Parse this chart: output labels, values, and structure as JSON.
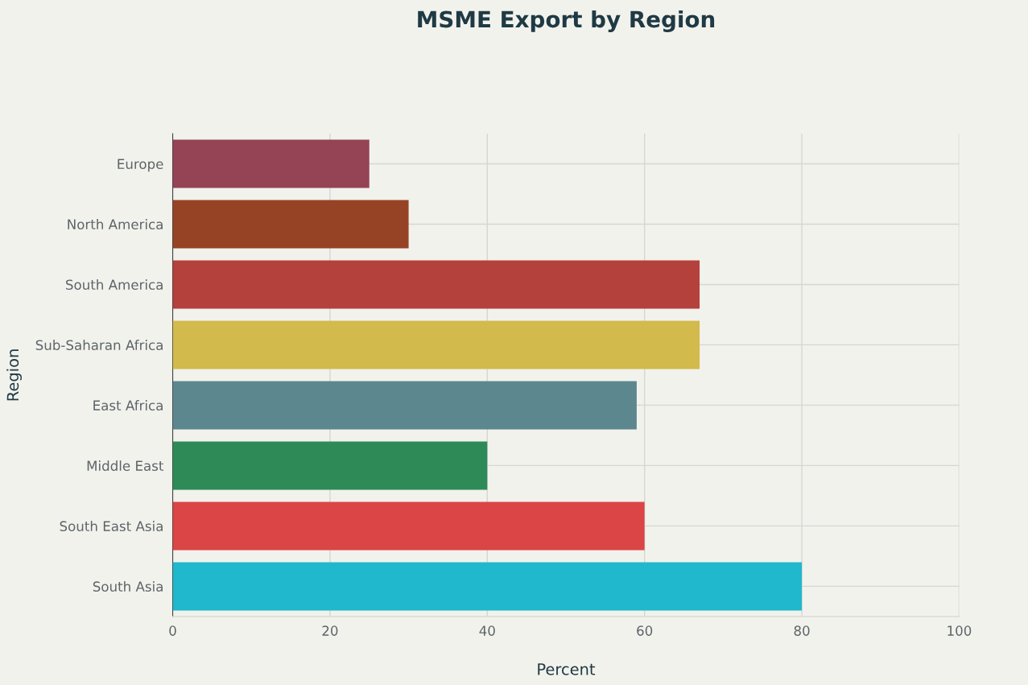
{
  "chart_data": {
    "type": "bar",
    "orientation": "horizontal",
    "title": "MSME Export by Region",
    "xlabel": "Percent",
    "ylabel": "Region",
    "categories": [
      "Europe",
      "North America",
      "South America",
      "Sub-Saharan Africa",
      "East Africa",
      "Middle East",
      "South East Asia",
      "South Asia"
    ],
    "values": [
      25,
      30,
      67,
      67,
      59,
      40,
      60,
      80
    ],
    "colors": [
      "#944454",
      "#964325",
      "#b4413c",
      "#d2ba4c",
      "#5d878f",
      "#2e8b57",
      "#db4545",
      "#1fb8cd"
    ],
    "xlim": [
      0,
      100
    ],
    "xticks": [
      0,
      20,
      40,
      60,
      80,
      100
    ],
    "grid": true,
    "legend": false
  }
}
